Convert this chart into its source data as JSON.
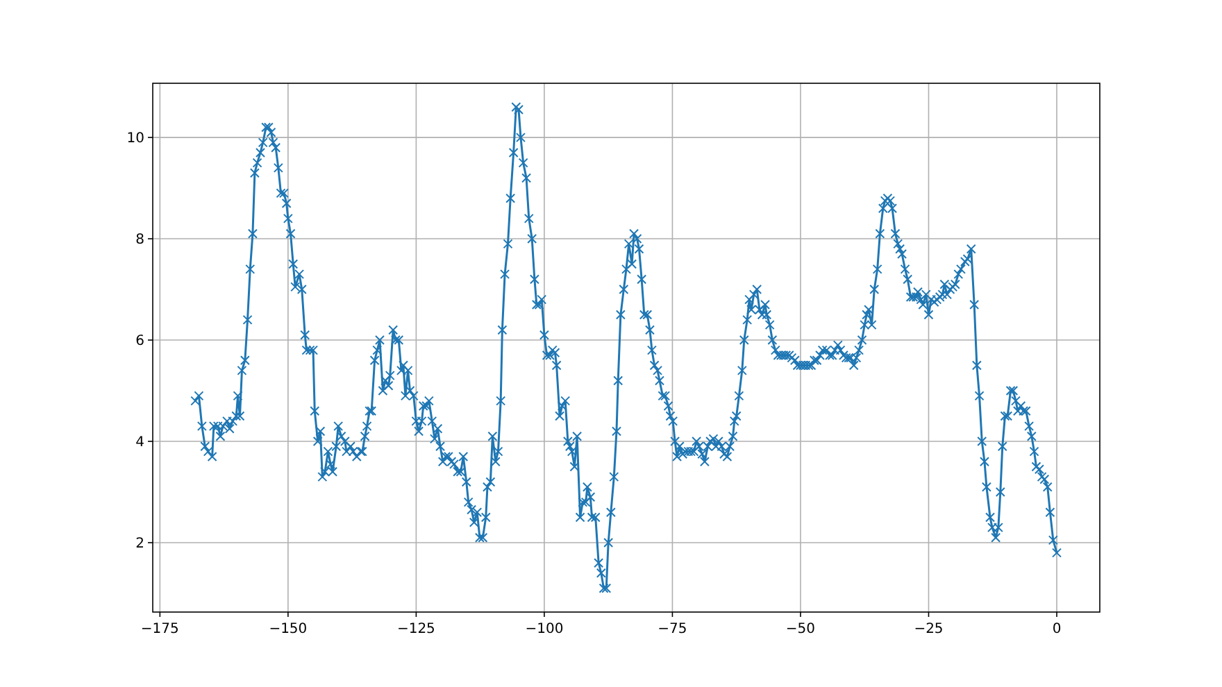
{
  "chart_data": {
    "type": "line",
    "marker": "cross",
    "line_style": "solid",
    "grid": true,
    "xlim": [
      -176.4,
      8.4
    ],
    "ylim": [
      0.63,
      11.07
    ],
    "xticks": [
      {
        "value": -175,
        "label": "−175"
      },
      {
        "value": -150,
        "label": "−150"
      },
      {
        "value": -125,
        "label": "−125"
      },
      {
        "value": -100,
        "label": "−100"
      },
      {
        "value": -75,
        "label": "−75"
      },
      {
        "value": -50,
        "label": "−50"
      },
      {
        "value": -25,
        "label": "−25"
      },
      0
    ],
    "yticks": [
      2,
      4,
      6,
      8,
      10
    ],
    "series": [
      {
        "color": "#1f77b4",
        "x": [
          -168.1,
          -167.4,
          -166.8,
          -166.2,
          -165.6,
          -164.8,
          -164.5,
          -163.7,
          -163.2,
          -162.7,
          -161.9,
          -161.4,
          -160.8,
          -160.1,
          -159.8,
          -159.4,
          -159.0,
          -158.4,
          -157.9,
          -157.4,
          -156.9,
          -156.5,
          -156.0,
          -155.4,
          -154.9,
          -154.3,
          -153.8,
          -153.3,
          -152.9,
          -152.4,
          -151.9,
          -151.4,
          -150.8,
          -150.3,
          -150.0,
          -149.5,
          -149.0,
          -148.6,
          -147.8,
          -147.3,
          -146.7,
          -146.4,
          -145.7,
          -145.1,
          -144.8,
          -144.2,
          -143.7,
          -143.3,
          -142.8,
          -142.2,
          -141.7,
          -141.3,
          -140.6,
          -140.2,
          -139.6,
          -138.9,
          -138.6,
          -137.8,
          -137.3,
          -136.6,
          -135.8,
          -135.5,
          -135.0,
          -134.6,
          -134.1,
          -133.7,
          -133.1,
          -132.6,
          -132.1,
          -131.5,
          -131.0,
          -130.4,
          -130.1,
          -129.5,
          -129.0,
          -128.4,
          -127.9,
          -127.5,
          -127.1,
          -126.6,
          -126.2,
          -125.5,
          -125.0,
          -124.5,
          -123.9,
          -123.6,
          -123.0,
          -122.5,
          -121.9,
          -121.4,
          -120.8,
          -120.3,
          -119.8,
          -119.2,
          -118.7,
          -118.1,
          -117.6,
          -116.9,
          -116.3,
          -115.8,
          -115.2,
          -114.8,
          -114.2,
          -113.7,
          -113.1,
          -112.6,
          -112.0,
          -111.4,
          -111.1,
          -110.5,
          -110.1,
          -109.5,
          -109.0,
          -108.5,
          -108.2,
          -107.7,
          -107.1,
          -106.6,
          -106.0,
          -105.5,
          -105.0,
          -104.6,
          -104.1,
          -103.5,
          -103.0,
          -102.4,
          -101.9,
          -101.5,
          -101.0,
          -100.5,
          -100.0,
          -99.5,
          -98.9,
          -98.4,
          -97.9,
          -97.6,
          -97.0,
          -96.5,
          -95.9,
          -95.4,
          -95.0,
          -94.6,
          -94.1,
          -93.6,
          -93.0,
          -92.5,
          -91.9,
          -91.6,
          -91.0,
          -90.7,
          -90.0,
          -89.4,
          -88.9,
          -88.4,
          -87.9,
          -87.5,
          -87.0,
          -86.4,
          -85.9,
          -85.6,
          -85.1,
          -84.5,
          -84.0,
          -83.5,
          -82.9,
          -82.5,
          -81.9,
          -81.5,
          -81.0,
          -80.5,
          -79.9,
          -79.4,
          -79.0,
          -78.5,
          -77.9,
          -77.5,
          -76.9,
          -76.4,
          -75.8,
          -75.4,
          -74.9,
          -74.5,
          -74.1,
          -73.6,
          -73.0,
          -72.5,
          -71.9,
          -71.4,
          -70.8,
          -70.3,
          -69.8,
          -69.2,
          -68.7,
          -68.1,
          -67.6,
          -67.0,
          -66.5,
          -66.0,
          -65.4,
          -64.9,
          -64.3,
          -63.8,
          -63.2,
          -62.9,
          -62.5,
          -62.0,
          -61.4,
          -61.0,
          -60.4,
          -60.0,
          -59.6,
          -59.1,
          -58.5,
          -58.0,
          -57.5,
          -56.9,
          -56.6,
          -56.0,
          -55.5,
          -54.9,
          -54.4,
          -53.8,
          -53.3,
          -52.8,
          -52.2,
          -51.7,
          -51.1,
          -50.6,
          -50.0,
          -49.5,
          -49.0,
          -48.4,
          -47.9,
          -47.3,
          -46.8,
          -46.2,
          -45.7,
          -44.9,
          -44.3,
          -43.8,
          -43.3,
          -42.7,
          -42.2,
          -41.6,
          -41.1,
          -40.6,
          -40.2,
          -39.6,
          -39.1,
          -38.6,
          -38.0,
          -37.5,
          -37.1,
          -36.7,
          -36.1,
          -35.6,
          -35.0,
          -34.5,
          -33.9,
          -33.5,
          -33.0,
          -32.5,
          -32.1,
          -31.5,
          -31.0,
          -30.6,
          -30.2,
          -29.6,
          -29.1,
          -28.5,
          -28.0,
          -27.4,
          -27.1,
          -26.5,
          -26.1,
          -25.5,
          -25.0,
          -24.5,
          -23.9,
          -23.4,
          -22.8,
          -22.3,
          -21.9,
          -21.4,
          -20.8,
          -20.3,
          -19.8,
          -19.2,
          -18.7,
          -17.9,
          -17.4,
          -16.7,
          -16.1,
          -15.6,
          -15.1,
          -14.6,
          -14.1,
          -13.7,
          -13.0,
          -12.6,
          -11.9,
          -11.4,
          -11.0,
          -10.6,
          -10.1,
          -9.6,
          -9.0,
          -8.5,
          -8.0,
          -7.6,
          -7.0,
          -6.5,
          -6.0,
          -5.4,
          -4.9,
          -4.4,
          -4.0,
          -3.4,
          -2.9,
          -2.4,
          -1.8,
          -1.3,
          -0.7,
          0
        ],
        "values": [
          4.8,
          4.9,
          4.3,
          3.9,
          3.8,
          3.7,
          4.3,
          4.3,
          4.1,
          4.3,
          4.4,
          4.25,
          4.4,
          4.5,
          4.9,
          4.5,
          5.4,
          5.6,
          6.4,
          7.4,
          8.1,
          9.3,
          9.5,
          9.7,
          9.9,
          10.2,
          10.2,
          10.1,
          9.9,
          9.8,
          9.4,
          8.9,
          8.9,
          8.7,
          8.4,
          8.1,
          7.5,
          7.05,
          7.3,
          7.0,
          6.1,
          5.8,
          5.8,
          5.8,
          4.6,
          4.0,
          4.2,
          3.3,
          3.4,
          3.8,
          3.55,
          3.4,
          3.9,
          4.3,
          4.1,
          4.0,
          3.8,
          3.9,
          3.8,
          3.7,
          3.8,
          3.8,
          4.1,
          4.3,
          4.6,
          4.6,
          5.6,
          5.8,
          6.0,
          5.0,
          5.2,
          5.1,
          5.3,
          6.2,
          6.0,
          6.0,
          5.4,
          5.5,
          4.9,
          5.4,
          5.0,
          4.9,
          4.4,
          4.2,
          4.4,
          4.7,
          4.7,
          4.8,
          4.4,
          4.05,
          4.25,
          3.9,
          3.6,
          3.7,
          3.7,
          3.6,
          3.55,
          3.4,
          3.4,
          3.7,
          3.2,
          2.8,
          2.65,
          2.4,
          2.6,
          2.1,
          2.1,
          2.5,
          3.1,
          3.2,
          4.1,
          3.6,
          3.8,
          4.8,
          6.2,
          7.3,
          7.9,
          8.8,
          9.7,
          10.6,
          10.55,
          10.0,
          9.5,
          9.2,
          8.4,
          8.0,
          7.2,
          6.7,
          6.7,
          6.8,
          6.1,
          5.7,
          5.7,
          5.8,
          5.75,
          5.5,
          4.5,
          4.7,
          4.8,
          4.0,
          3.9,
          3.8,
          3.5,
          4.1,
          2.5,
          2.8,
          2.8,
          3.1,
          2.9,
          2.5,
          2.5,
          1.6,
          1.4,
          1.1,
          1.1,
          2.0,
          2.6,
          3.3,
          4.2,
          5.2,
          6.5,
          7.0,
          7.4,
          7.9,
          7.5,
          8.1,
          8.0,
          7.8,
          7.2,
          6.5,
          6.5,
          6.2,
          5.8,
          5.5,
          5.4,
          5.2,
          4.9,
          4.9,
          4.7,
          4.5,
          4.4,
          4.0,
          3.7,
          3.9,
          3.75,
          3.8,
          3.8,
          3.8,
          3.8,
          4.0,
          3.9,
          3.75,
          3.6,
          3.9,
          4.0,
          4.05,
          3.9,
          4.0,
          3.9,
          3.75,
          3.7,
          3.9,
          4.1,
          4.4,
          4.5,
          4.9,
          5.4,
          6.0,
          6.4,
          6.8,
          6.6,
          6.9,
          7.0,
          6.6,
          6.5,
          6.7,
          6.5,
          6.3,
          6.0,
          5.8,
          5.7,
          5.7,
          5.7,
          5.7,
          5.7,
          5.65,
          5.6,
          5.5,
          5.5,
          5.5,
          5.5,
          5.5,
          5.5,
          5.6,
          5.6,
          5.7,
          5.8,
          5.8,
          5.7,
          5.7,
          5.8,
          5.9,
          5.8,
          5.7,
          5.65,
          5.65,
          5.65,
          5.5,
          5.65,
          5.8,
          6.0,
          6.3,
          6.5,
          6.6,
          6.3,
          7.0,
          7.4,
          8.1,
          8.6,
          8.75,
          8.8,
          8.75,
          8.6,
          8.1,
          7.9,
          7.8,
          7.7,
          7.4,
          7.2,
          6.85,
          6.85,
          6.85,
          6.95,
          6.8,
          6.7,
          6.9,
          6.5,
          6.8,
          6.75,
          6.8,
          6.85,
          6.9,
          7.1,
          6.9,
          7.0,
          7.05,
          7.1,
          7.3,
          7.4,
          7.55,
          7.6,
          7.8,
          6.7,
          5.5,
          4.9,
          4.0,
          3.6,
          3.1,
          2.5,
          2.3,
          2.1,
          2.3,
          3.0,
          3.9,
          4.5,
          4.5,
          5.0,
          5.0,
          4.8,
          4.6,
          4.7,
          4.6,
          4.6,
          4.3,
          4.1,
          3.8,
          3.5,
          3.45,
          3.3,
          3.25,
          3.1,
          2.6,
          2.05,
          1.8
        ]
      }
    ]
  }
}
